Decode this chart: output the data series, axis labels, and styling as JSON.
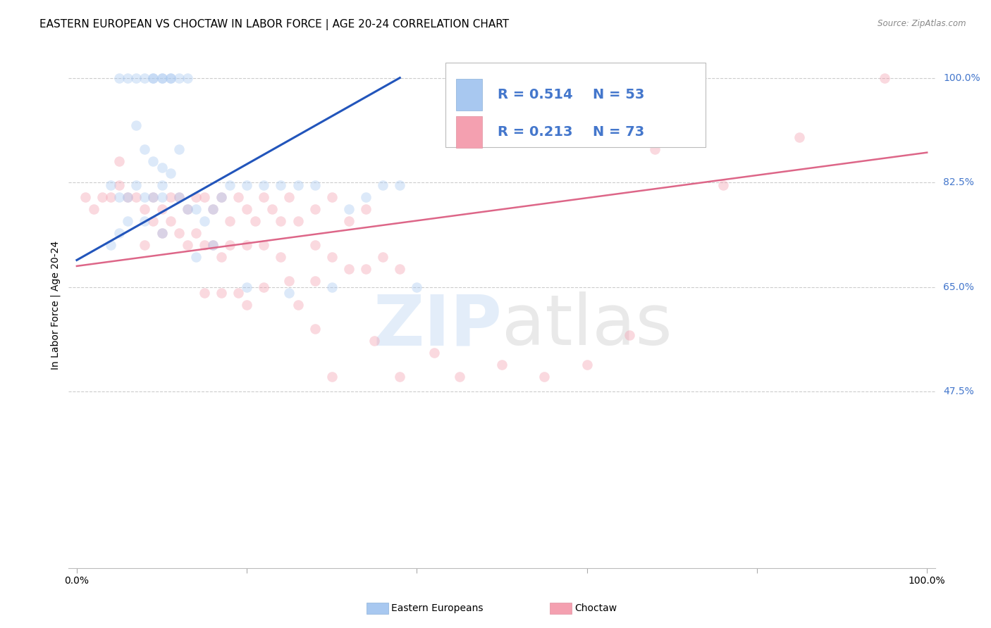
{
  "title": "EASTERN EUROPEAN VS CHOCTAW IN LABOR FORCE | AGE 20-24 CORRELATION CHART",
  "source": "Source: ZipAtlas.com",
  "ylabel": "In Labor Force | Age 20-24",
  "ytick_labels": [
    "100.0%",
    "82.5%",
    "65.0%",
    "47.5%"
  ],
  "ytick_values": [
    1.0,
    0.825,
    0.65,
    0.475
  ],
  "xlim": [
    -0.01,
    1.01
  ],
  "ylim": [
    0.18,
    1.06
  ],
  "watermark_zip": "ZIP",
  "watermark_atlas": "atlas",
  "legend_r1": "R = 0.514",
  "legend_n1": "N = 53",
  "legend_r2": "R = 0.213",
  "legend_n2": "N = 73",
  "color_blue": "#a8c8f0",
  "color_blue_line": "#2255bb",
  "color_blue_legend_box": "#a8c8f0",
  "color_pink": "#f4a0b0",
  "color_pink_line": "#dd6688",
  "color_pink_legend_box": "#f4a0b0",
  "color_legend_text": "#4477cc",
  "color_ytick": "#4477cc",
  "scatter_blue_x": [
    0.05,
    0.06,
    0.07,
    0.08,
    0.09,
    0.09,
    0.1,
    0.1,
    0.11,
    0.11,
    0.12,
    0.13,
    0.07,
    0.08,
    0.09,
    0.1,
    0.1,
    0.11,
    0.12,
    0.04,
    0.05,
    0.06,
    0.07,
    0.08,
    0.09,
    0.1,
    0.12,
    0.13,
    0.14,
    0.15,
    0.16,
    0.17,
    0.18,
    0.2,
    0.22,
    0.24,
    0.26,
    0.28,
    0.32,
    0.34,
    0.36,
    0.38,
    0.4,
    0.3,
    0.25,
    0.2,
    0.16,
    0.14,
    0.1,
    0.08,
    0.06,
    0.05,
    0.04
  ],
  "scatter_blue_y": [
    1.0,
    1.0,
    1.0,
    1.0,
    1.0,
    1.0,
    1.0,
    1.0,
    1.0,
    1.0,
    1.0,
    1.0,
    0.92,
    0.88,
    0.86,
    0.85,
    0.82,
    0.84,
    0.88,
    0.82,
    0.8,
    0.8,
    0.82,
    0.8,
    0.8,
    0.8,
    0.8,
    0.78,
    0.78,
    0.76,
    0.78,
    0.8,
    0.82,
    0.82,
    0.82,
    0.82,
    0.82,
    0.82,
    0.78,
    0.8,
    0.82,
    0.82,
    0.65,
    0.65,
    0.64,
    0.65,
    0.72,
    0.7,
    0.74,
    0.76,
    0.76,
    0.74,
    0.72
  ],
  "scatter_pink_x": [
    0.01,
    0.02,
    0.03,
    0.04,
    0.05,
    0.05,
    0.06,
    0.07,
    0.08,
    0.09,
    0.1,
    0.11,
    0.12,
    0.13,
    0.14,
    0.15,
    0.16,
    0.17,
    0.18,
    0.19,
    0.2,
    0.21,
    0.22,
    0.23,
    0.24,
    0.25,
    0.26,
    0.28,
    0.3,
    0.32,
    0.34,
    0.08,
    0.09,
    0.1,
    0.11,
    0.12,
    0.13,
    0.14,
    0.15,
    0.16,
    0.17,
    0.18,
    0.2,
    0.22,
    0.24,
    0.28,
    0.3,
    0.34,
    0.38,
    0.36,
    0.32,
    0.28,
    0.25,
    0.22,
    0.19,
    0.17,
    0.15,
    0.26,
    0.2,
    0.28,
    0.35,
    0.42,
    0.5,
    0.6,
    0.68,
    0.95,
    0.3,
    0.38,
    0.45,
    0.55,
    0.65,
    0.76,
    0.85
  ],
  "scatter_pink_y": [
    0.8,
    0.78,
    0.8,
    0.8,
    0.82,
    0.86,
    0.8,
    0.8,
    0.78,
    0.8,
    0.78,
    0.8,
    0.8,
    0.78,
    0.8,
    0.8,
    0.78,
    0.8,
    0.76,
    0.8,
    0.78,
    0.76,
    0.8,
    0.78,
    0.76,
    0.8,
    0.76,
    0.78,
    0.8,
    0.76,
    0.78,
    0.72,
    0.76,
    0.74,
    0.76,
    0.74,
    0.72,
    0.74,
    0.72,
    0.72,
    0.7,
    0.72,
    0.72,
    0.72,
    0.7,
    0.72,
    0.7,
    0.68,
    0.68,
    0.7,
    0.68,
    0.66,
    0.66,
    0.65,
    0.64,
    0.64,
    0.64,
    0.62,
    0.62,
    0.58,
    0.56,
    0.54,
    0.52,
    0.52,
    0.88,
    1.0,
    0.5,
    0.5,
    0.5,
    0.5,
    0.57,
    0.82,
    0.9
  ],
  "blue_line_x": [
    0.0,
    0.38
  ],
  "blue_line_y": [
    0.695,
    1.0
  ],
  "pink_line_x": [
    0.0,
    1.0
  ],
  "pink_line_y": [
    0.685,
    0.875
  ],
  "background_color": "#ffffff",
  "grid_color": "#cccccc",
  "title_fontsize": 11,
  "axis_label_fontsize": 10,
  "tick_fontsize": 10,
  "legend_fontsize": 14,
  "scatter_size": 110,
  "scatter_alpha": 0.4,
  "bottom_legend_label1": "Eastern Europeans",
  "bottom_legend_label2": "Choctaw"
}
